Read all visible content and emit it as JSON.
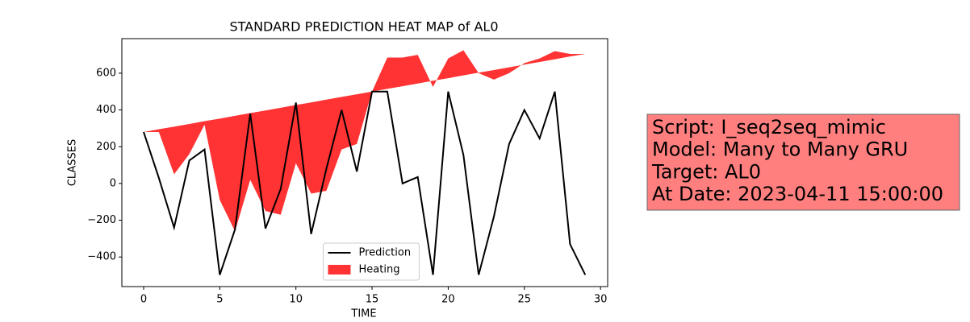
{
  "chart_data": {
    "type": "line",
    "title": "STANDARD PREDICTION HEAT MAP of AL0",
    "x_label": "TIME",
    "y_label": "CLASSES",
    "x": [
      0,
      1,
      2,
      3,
      4,
      5,
      6,
      7,
      8,
      9,
      10,
      11,
      12,
      13,
      14,
      15,
      16,
      17,
      18,
      19,
      20,
      21,
      22,
      23,
      24,
      25,
      26,
      27,
      28,
      29
    ],
    "series": [
      {
        "name": "Prediction",
        "color": "#000000",
        "values": [
          280,
          30,
          -240,
          125,
          185,
          -497,
          -250,
          380,
          -245,
          -30,
          440,
          -275,
          80,
          400,
          65,
          500,
          500,
          0,
          35,
          -497,
          500,
          155,
          -497,
          -180,
          215,
          400,
          245,
          500,
          -330,
          -497
        ]
      },
      {
        "name": "Heating",
        "color": "#ff0000",
        "values": [
          280,
          280,
          50,
          160,
          320,
          -90,
          -260,
          20,
          -150,
          -170,
          110,
          -55,
          -40,
          185,
          215,
          500,
          685,
          685,
          700,
          525,
          680,
          725,
          600,
          565,
          600,
          655,
          680,
          720,
          705,
          705
        ],
        "baseline": [
          280,
          295,
          309,
          324,
          339,
          353,
          368,
          383,
          397,
          412,
          427,
          441,
          456,
          471,
          485,
          500,
          515,
          529,
          544,
          559,
          573,
          588,
          603,
          617,
          632,
          647,
          661,
          676,
          691,
          705
        ]
      }
    ],
    "xlim": [
      -1.43,
      30.47
    ],
    "ylim": [
      -561,
      788
    ],
    "xticks": [
      0,
      5,
      10,
      15,
      20,
      25,
      30
    ],
    "yticks": [
      {
        "value": -400,
        "label": "−400"
      },
      {
        "value": -200,
        "label": "−200"
      },
      0,
      200,
      400,
      600
    ],
    "legend": "lower center",
    "annotation": [
      "Script: I_seq2seq_mimic",
      "Model: Many to Many GRU",
      "Target: AL0",
      "At Date: 2023-04-11 15:00:00"
    ]
  }
}
